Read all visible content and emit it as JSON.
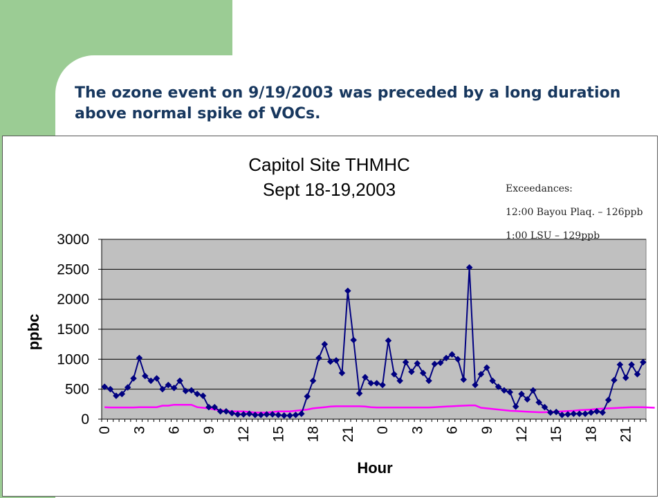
{
  "slide": {
    "title": "The ozone event on 9/19/2003 was preceded by a long duration above normal spike of VOCs."
  },
  "annotation": {
    "heading": "Exceedances:",
    "lines": [
      "12:00 Bayou Plaq. – 126ppb",
      "1:00 LSU – 129ppb"
    ]
  },
  "colors": {
    "green_accent": "#9bcc94",
    "title_text": "#17375e",
    "plot_background": "#c0c0c0",
    "series_thmhc": "#000080",
    "series_baseline": "#ff00ff"
  },
  "chart_data": {
    "type": "line",
    "title": "Capitol Site THMHC",
    "subtitle": "Sept 18-19,2003",
    "xlabel": "Hour",
    "ylabel": "ppbc",
    "ylim": [
      0,
      3000
    ],
    "yticks": [
      0,
      500,
      1000,
      1500,
      2000,
      2500,
      3000
    ],
    "grid": "horizontal",
    "legend": "none",
    "xtick_labels": [
      "0",
      "3",
      "6",
      "9",
      "12",
      "15",
      "18",
      "21",
      "0",
      "3",
      "6",
      "9",
      "12",
      "15",
      "18",
      "21"
    ],
    "xtick_index_step": 6,
    "series": [
      {
        "marker": "diamond",
        "values": [
          540,
          500,
          390,
          420,
          530,
          680,
          1020,
          720,
          640,
          680,
          500,
          570,
          520,
          640,
          470,
          480,
          420,
          390,
          200,
          200,
          130,
          130,
          100,
          80,
          80,
          90,
          70,
          70,
          80,
          80,
          70,
          60,
          60,
          70,
          90,
          380,
          640,
          1020,
          1250,
          960,
          980,
          770,
          2140,
          1320,
          430,
          700,
          600,
          600,
          570,
          1310,
          750,
          640,
          950,
          790,
          930,
          770,
          640,
          920,
          940,
          1020,
          1080,
          1000,
          660,
          2530,
          570,
          750,
          860,
          640,
          540,
          480,
          450,
          210,
          420,
          330,
          480,
          280,
          200,
          110,
          120,
          70,
          80,
          90,
          90,
          90,
          110,
          130,
          110,
          320,
          650,
          910,
          690,
          910,
          750,
          950
        ]
      },
      {
        "marker": "none",
        "values": [
          200,
          195,
          195,
          195,
          195,
          195,
          200,
          200,
          200,
          200,
          225,
          225,
          240,
          240,
          240,
          240,
          200,
          190,
          180,
          160,
          150,
          140,
          130,
          130,
          130,
          120,
          110,
          110,
          110,
          120,
          130,
          130,
          130,
          140,
          150,
          160,
          180,
          190,
          200,
          210,
          215,
          215,
          215,
          215,
          215,
          210,
          200,
          195,
          195,
          195,
          195,
          195,
          195,
          195,
          195,
          195,
          195,
          200,
          205,
          210,
          215,
          220,
          225,
          230,
          230,
          190,
          180,
          170,
          160,
          150,
          140,
          135,
          130,
          125,
          120,
          115,
          115,
          120,
          125,
          130,
          135,
          140,
          150,
          155,
          160,
          170,
          175,
          180,
          185,
          190,
          195,
          200,
          200,
          200,
          195,
          190
        ]
      }
    ]
  }
}
